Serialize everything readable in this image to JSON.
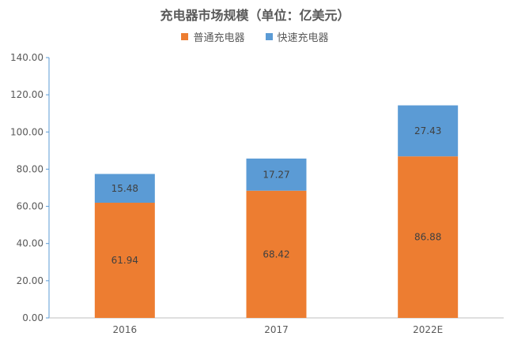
{
  "chart_data": {
    "type": "bar",
    "stacked": true,
    "title": "充电器市场规模（单位：亿美元）",
    "categories": [
      "2016",
      "2017",
      "2022E"
    ],
    "series": [
      {
        "name": "普通充电器",
        "values": [
          61.94,
          68.42,
          86.88
        ],
        "color": "#ED7D31"
      },
      {
        "name": "快速充电器",
        "values": [
          15.48,
          17.27,
          27.43
        ],
        "color": "#5B9BD5"
      }
    ],
    "ylim": [
      0,
      140
    ],
    "yticks": [
      "0.00",
      "20.00",
      "40.00",
      "60.00",
      "80.00",
      "100.00",
      "120.00",
      "140.00"
    ],
    "legend_position": "top",
    "grid": false
  }
}
